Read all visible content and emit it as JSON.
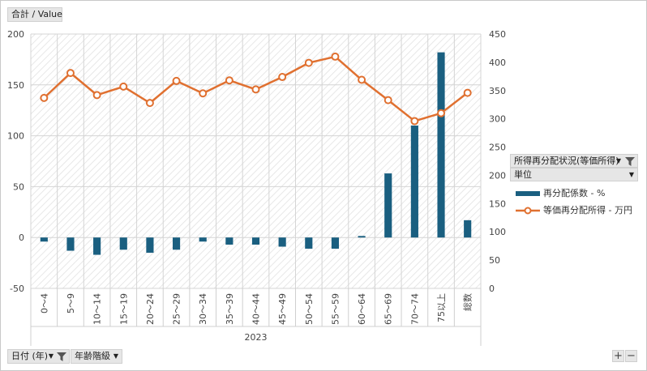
{
  "top_field": {
    "label": "合計 / Value"
  },
  "filter_fields": {
    "items": [
      {
        "label": "所得再分配状況(等価所得)"
      },
      {
        "label": "単位"
      }
    ]
  },
  "bottom_fields": {
    "date_label": "日付 (年)",
    "age_label": "年齢階級"
  },
  "zoom": {
    "plus": "+",
    "minus": "−"
  },
  "chart_data": {
    "type": "bar+line",
    "categories": [
      "0～4",
      "5～9",
      "10～14",
      "15～19",
      "20～24",
      "25～29",
      "30～34",
      "35～39",
      "40～44",
      "45～49",
      "50～54",
      "55～59",
      "60～64",
      "65～69",
      "70～74",
      "75以上",
      "総数"
    ],
    "group_label": "2023",
    "y_left": {
      "min": -50,
      "max": 200,
      "ticks": [
        -50,
        0,
        50,
        100,
        150,
        200
      ]
    },
    "y_right": {
      "min": 0,
      "max": 450,
      "ticks": [
        0,
        50,
        100,
        150,
        200,
        250,
        300,
        350,
        400,
        450
      ]
    },
    "series": [
      {
        "name": "再分配係数 - %",
        "type": "bar",
        "axis": "left",
        "color": "#1a5f80",
        "values": [
          -4,
          -13,
          -17,
          -12,
          -15,
          -12,
          -4,
          -7,
          -7,
          -9,
          -11,
          -11,
          1.5,
          63,
          110,
          182,
          17
        ]
      },
      {
        "name": "等価再分配所得 - 万円",
        "type": "line",
        "axis": "right",
        "color": "#e07030",
        "values": [
          337,
          381,
          342,
          357,
          328,
          367,
          345,
          368,
          352,
          374,
          399,
          410,
          369,
          333,
          296,
          310,
          346
        ]
      }
    ],
    "grid": true,
    "legend_position": "right"
  }
}
